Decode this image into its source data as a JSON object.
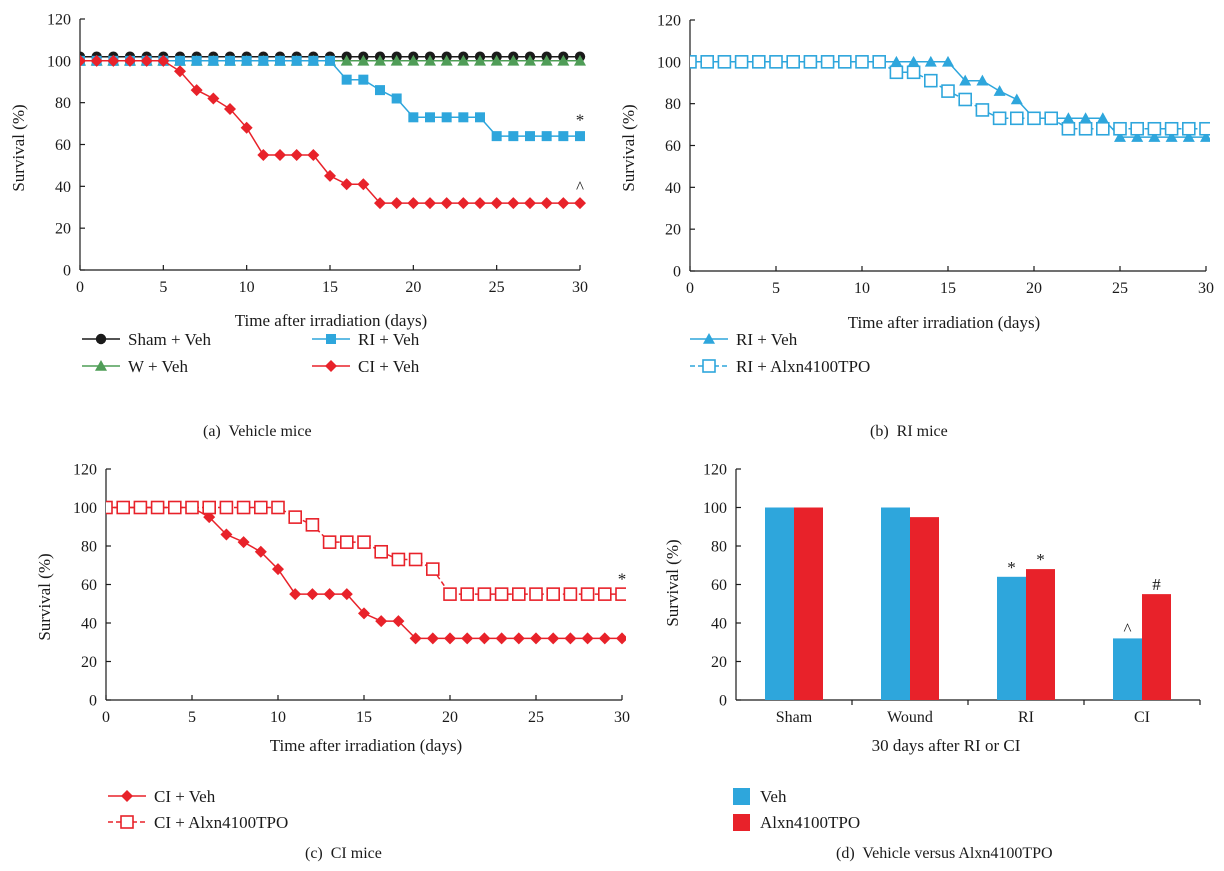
{
  "chart_data": [
    {
      "id": "a",
      "type": "line",
      "caption": "(a)  Vehicle mice",
      "xlabel": "Time after irradiation (days)",
      "ylabel": "Survival (%)",
      "xlim": [
        0,
        30
      ],
      "ylim": [
        0,
        120
      ],
      "xticks": [
        0,
        5,
        10,
        15,
        20,
        25,
        30
      ],
      "yticks": [
        0,
        20,
        40,
        60,
        80,
        100,
        120
      ],
      "grid": false,
      "legend_position": "bottom",
      "x": [
        0,
        1,
        2,
        3,
        4,
        5,
        6,
        7,
        8,
        9,
        10,
        11,
        12,
        13,
        14,
        15,
        16,
        17,
        18,
        19,
        20,
        21,
        22,
        23,
        24,
        25,
        26,
        27,
        28,
        29,
        30
      ],
      "series": [
        {
          "name": "Sham + Veh",
          "color": "#1a1a1a",
          "marker": "circle",
          "offset_display": 2,
          "values": [
            100,
            100,
            100,
            100,
            100,
            100,
            100,
            100,
            100,
            100,
            100,
            100,
            100,
            100,
            100,
            100,
            100,
            100,
            100,
            100,
            100,
            100,
            100,
            100,
            100,
            100,
            100,
            100,
            100,
            100,
            100
          ]
        },
        {
          "name": "W + Veh",
          "color": "#4f9d57",
          "marker": "triangle",
          "values": [
            100,
            100,
            100,
            100,
            100,
            100,
            100,
            100,
            100,
            100,
            100,
            100,
            100,
            100,
            100,
            100,
            100,
            100,
            100,
            100,
            100,
            100,
            100,
            100,
            100,
            100,
            100,
            100,
            100,
            100,
            100
          ]
        },
        {
          "name": "RI + Veh",
          "color": "#2ea6dc",
          "marker": "square",
          "values": [
            100,
            100,
            100,
            100,
            100,
            100,
            100,
            100,
            100,
            100,
            100,
            100,
            100,
            100,
            100,
            100,
            91,
            91,
            86,
            82,
            73,
            73,
            73,
            73,
            73,
            64,
            64,
            64,
            64,
            64,
            64
          ]
        },
        {
          "name": "CI + Veh",
          "color": "#e8222a",
          "marker": "diamond",
          "values": [
            100,
            100,
            100,
            100,
            100,
            100,
            95,
            86,
            82,
            77,
            68,
            55,
            55,
            55,
            55,
            45,
            41,
            41,
            32,
            32,
            32,
            32,
            32,
            32,
            32,
            32,
            32,
            32,
            32,
            32,
            32
          ]
        }
      ],
      "annotations": [
        {
          "text": "*",
          "x": 30,
          "y": 72
        },
        {
          "text": "^",
          "x": 30,
          "y": 40
        }
      ]
    },
    {
      "id": "b",
      "type": "line",
      "caption": "(b)  RI mice",
      "xlabel": "Time after irradiation (days)",
      "ylabel": "Survival (%)",
      "xlim": [
        0,
        30
      ],
      "ylim": [
        0,
        120
      ],
      "xticks": [
        0,
        5,
        10,
        15,
        20,
        25,
        30
      ],
      "yticks": [
        0,
        20,
        40,
        60,
        80,
        100,
        120
      ],
      "grid": false,
      "legend_position": "bottom",
      "x": [
        0,
        1,
        2,
        3,
        4,
        5,
        6,
        7,
        8,
        9,
        10,
        11,
        12,
        13,
        14,
        15,
        16,
        17,
        18,
        19,
        20,
        21,
        22,
        23,
        24,
        25,
        26,
        27,
        28,
        29,
        30
      ],
      "series": [
        {
          "name": "RI + Veh",
          "color": "#2ea6dc",
          "marker": "triangle",
          "values": [
            100,
            100,
            100,
            100,
            100,
            100,
            100,
            100,
            100,
            100,
            100,
            100,
            100,
            100,
            100,
            100,
            91,
            91,
            86,
            82,
            73,
            73,
            73,
            73,
            73,
            64,
            64,
            64,
            64,
            64,
            64
          ]
        },
        {
          "name": "RI + Alxn4100TPO",
          "color": "#2ea6dc",
          "marker": "square-open",
          "dashed": true,
          "values": [
            100,
            100,
            100,
            100,
            100,
            100,
            100,
            100,
            100,
            100,
            100,
            100,
            95,
            95,
            91,
            86,
            82,
            77,
            73,
            73,
            73,
            73,
            68,
            68,
            68,
            68,
            68,
            68,
            68,
            68,
            68
          ]
        }
      ],
      "annotations": []
    },
    {
      "id": "c",
      "type": "line",
      "caption": "(c)  CI mice",
      "xlabel": "Time after irradiation (days)",
      "ylabel": "Survival (%)",
      "xlim": [
        0,
        30
      ],
      "ylim": [
        0,
        120
      ],
      "xticks": [
        0,
        5,
        10,
        15,
        20,
        25,
        30
      ],
      "yticks": [
        0,
        20,
        40,
        60,
        80,
        100,
        120
      ],
      "grid": false,
      "legend_position": "bottom",
      "x": [
        0,
        1,
        2,
        3,
        4,
        5,
        6,
        7,
        8,
        9,
        10,
        11,
        12,
        13,
        14,
        15,
        16,
        17,
        18,
        19,
        20,
        21,
        22,
        23,
        24,
        25,
        26,
        27,
        28,
        29,
        30
      ],
      "series": [
        {
          "name": "CI + Veh",
          "color": "#e8222a",
          "marker": "diamond",
          "values": [
            100,
            100,
            100,
            100,
            100,
            100,
            95,
            86,
            82,
            77,
            68,
            55,
            55,
            55,
            55,
            45,
            41,
            41,
            32,
            32,
            32,
            32,
            32,
            32,
            32,
            32,
            32,
            32,
            32,
            32,
            32
          ]
        },
        {
          "name": "CI + Alxn4100TPO",
          "color": "#e8222a",
          "marker": "square-open",
          "dashed": true,
          "values": [
            100,
            100,
            100,
            100,
            100,
            100,
            100,
            100,
            100,
            100,
            100,
            95,
            91,
            82,
            82,
            82,
            77,
            73,
            73,
            68,
            55,
            55,
            55,
            55,
            55,
            55,
            55,
            55,
            55,
            55,
            55
          ]
        }
      ],
      "annotations": [
        {
          "text": "*",
          "x": 30,
          "y": 63
        }
      ]
    },
    {
      "id": "d",
      "type": "bar",
      "caption": "(d)  Vehicle versus Alxn4100TPO",
      "xlabel": "30 days after RI or CI",
      "ylabel": "Survival (%)",
      "ylim": [
        0,
        120
      ],
      "yticks": [
        0,
        20,
        40,
        60,
        80,
        100,
        120
      ],
      "grid": false,
      "legend_position": "bottom",
      "categories": [
        "Sham",
        "Wound",
        "RI",
        "CI"
      ],
      "series": [
        {
          "name": "Veh",
          "color": "#2ea6dc",
          "values": [
            100,
            100,
            64,
            32
          ],
          "labels": [
            "",
            "",
            "*",
            "^"
          ]
        },
        {
          "name": "Alxn4100TPO",
          "color": "#e8222a",
          "values": [
            100,
            95,
            68,
            55
          ],
          "labels": [
            "",
            "",
            "*",
            "#"
          ]
        }
      ]
    }
  ]
}
